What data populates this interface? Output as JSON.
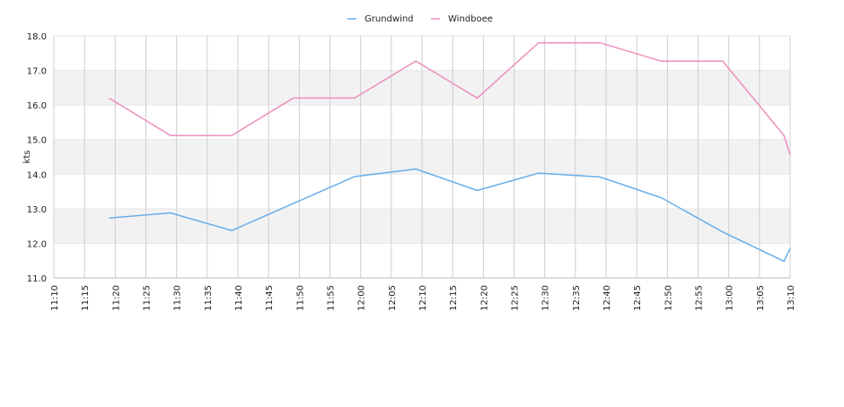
{
  "chart_data": {
    "type": "line",
    "y_label": "kts",
    "x": [
      "11:19",
      "11:29",
      "11:39",
      "11:49",
      "11:59",
      "12:09",
      "12:19",
      "12:29",
      "12:39",
      "12:49",
      "12:59",
      "13:09",
      "13:10"
    ],
    "series": [
      {
        "name": "Grundwind",
        "color": "#6aaee8",
        "values": [
          12.73,
          12.88,
          12.37,
          13.15,
          13.93,
          14.15,
          13.53,
          14.03,
          13.92,
          13.32,
          12.33,
          11.48,
          11.85
        ]
      },
      {
        "name": "Windboee",
        "color": "#ee8fbf",
        "values": [
          16.2,
          15.12,
          15.12,
          16.2,
          16.2,
          17.27,
          16.2,
          17.8,
          17.8,
          17.27,
          17.27,
          15.12,
          14.55
        ]
      }
    ],
    "xlim": [
      "11:10",
      "13:10"
    ],
    "xticks": [
      "11:10",
      "11:15",
      "11:20",
      "11:25",
      "11:30",
      "11:35",
      "11:40",
      "11:45",
      "11:50",
      "11:55",
      "12:00",
      "12:05",
      "12:10",
      "12:15",
      "12:20",
      "12:25",
      "12:30",
      "12:35",
      "12:40",
      "12:45",
      "12:50",
      "12:55",
      "13:00",
      "13:05",
      "13:10"
    ],
    "ylim": [
      11,
      18
    ],
    "yticks": [
      {
        "value": 11,
        "label": "11.0"
      },
      {
        "value": 12,
        "label": "12.0"
      },
      {
        "value": 13,
        "label": "13.0"
      },
      {
        "value": 14,
        "label": "14.0"
      },
      {
        "value": 15,
        "label": "15.0"
      },
      {
        "value": 16,
        "label": "16.0"
      },
      {
        "value": 17,
        "label": "17.0"
      },
      {
        "value": 18,
        "label": "18.0"
      }
    ],
    "grid": true,
    "legend": "top"
  }
}
